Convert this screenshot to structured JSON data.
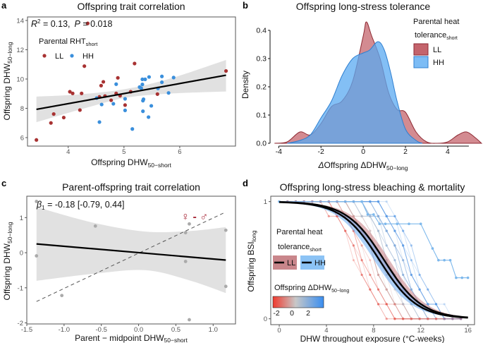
{
  "chart_data": [
    {
      "panel": "a",
      "type": "scatter",
      "title": "Offspring trait correlation",
      "xlabel": "Offspring DHW",
      "xlabel_sub": "50−short",
      "ylabel": "Offspring DHW",
      "ylabel_sub": "50−long",
      "xlim": [
        3.27,
        7.0
      ],
      "ylim": [
        5.42,
        14.24
      ],
      "xticks": [
        4,
        5,
        6
      ],
      "yticks": [
        6,
        8,
        10,
        12,
        14
      ],
      "grid": false,
      "annotation": {
        "r2": "R",
        "r2_sup": "2",
        "r2_val": " = 0.13,",
        "p": "P",
        "p_val": " = 0.018"
      },
      "legend": {
        "title": "Parental RHT",
        "title_sub": "short",
        "placement": "top-left"
      },
      "series": [
        {
          "name": "LL",
          "color": "#a83232",
          "points": [
            [
              3.43,
              5.84
            ],
            [
              3.69,
              7.0
            ],
            [
              3.74,
              7.61
            ],
            [
              3.92,
              7.37
            ],
            [
              4.03,
              9.13
            ],
            [
              4.08,
              9.02
            ],
            [
              4.24,
              9.02
            ],
            [
              4.21,
              7.88
            ],
            [
              4.29,
              10.88
            ],
            [
              4.35,
              13.8
            ],
            [
              4.59,
              9.55
            ],
            [
              4.63,
              9.81
            ],
            [
              4.56,
              8.78
            ],
            [
              4.66,
              8.84
            ],
            [
              4.77,
              8.55
            ],
            [
              4.86,
              9.02
            ],
            [
              4.89,
              10.08
            ],
            [
              4.93,
              8.86
            ],
            [
              5.02,
              8.22
            ],
            [
              5.12,
              9.13
            ],
            [
              5.19,
              11.06
            ],
            [
              5.6,
              8.97
            ],
            [
              6.83,
              10.55
            ]
          ]
        },
        {
          "name": "HH",
          "color": "#3a8fdc",
          "points": [
            [
              4.56,
              7.06
            ],
            [
              4.6,
              8.26
            ],
            [
              4.81,
              8.31
            ],
            [
              4.86,
              9.65
            ],
            [
              4.51,
              8.7
            ],
            [
              5.02,
              8.65
            ],
            [
              5.02,
              7.86
            ],
            [
              5.15,
              6.59
            ],
            [
              5.28,
              9.45
            ],
            [
              5.31,
              9.37
            ],
            [
              5.33,
              9.63
            ],
            [
              5.33,
              9.98
            ],
            [
              5.38,
              9.98
            ],
            [
              5.34,
              8.52
            ],
            [
              5.35,
              8.62
            ],
            [
              5.34,
              7.8
            ],
            [
              5.44,
              7.4
            ],
            [
              5.45,
              10.14
            ],
            [
              5.49,
              8.17
            ],
            [
              5.61,
              9.36
            ],
            [
              5.68,
              9.78
            ],
            [
              5.68,
              10.18
            ],
            [
              5.8,
              9.05
            ],
            [
              5.89,
              10.1
            ]
          ]
        }
      ],
      "fit": {
        "x": [
          3.43,
          6.83
        ],
        "y": [
          7.93,
          10.26
        ]
      },
      "ci": {
        "x": [
          3.43,
          4.2,
          5.0,
          5.8,
          6.83
        ],
        "lower": [
          7.05,
          7.9,
          8.7,
          9.0,
          9.15
        ],
        "upper": [
          8.8,
          8.95,
          9.3,
          10.0,
          11.3
        ]
      }
    },
    {
      "panel": "b",
      "type": "area",
      "title": "Offspring long-stress tolerance",
      "xlabel": "Offspring ΔDHW",
      "xlabel_sub": "50−long",
      "ylabel": "Density",
      "xlim": [
        -4.41,
        5.67
      ],
      "ylim": [
        0,
        0.45
      ],
      "xticks": [
        -4,
        -2,
        0,
        2,
        4
      ],
      "yticks": [
        0.0,
        0.1,
        0.2,
        0.3,
        0.4
      ],
      "ytick_labels": [
        "0.0",
        "0.1",
        "0.2",
        "0.3",
        "0.4"
      ],
      "legend": {
        "title_line1": "Parental heat",
        "title_line2": "tolerance",
        "title_sub": "short",
        "placement": "top-right"
      },
      "series": [
        {
          "name": "LL",
          "fill": "#c4646c",
          "stroke": "#8e2a33",
          "points": [
            [
              -4.2,
              0
            ],
            [
              -3.6,
              0.005
            ],
            [
              -3,
              0.04
            ],
            [
              -2.5,
              0.03
            ],
            [
              -2,
              0.07
            ],
            [
              -1.5,
              0.13
            ],
            [
              -1,
              0.15
            ],
            [
              -0.5,
              0.22
            ],
            [
              0,
              0.38
            ],
            [
              0.15,
              0.43
            ],
            [
              0.4,
              0.38
            ],
            [
              0.8,
              0.3
            ],
            [
              1.2,
              0.18
            ],
            [
              1.6,
              0.12
            ],
            [
              2,
              0.11
            ],
            [
              2.5,
              0.04
            ],
            [
              3,
              0.005
            ],
            [
              3.5,
              0
            ],
            [
              4,
              0.005
            ],
            [
              4.5,
              0.03
            ],
            [
              4.9,
              0.04
            ],
            [
              5.3,
              0.02
            ],
            [
              5.6,
              0
            ]
          ]
        },
        {
          "name": "HH",
          "fill": "#5aaaf2",
          "stroke": "#2f7fd0",
          "points": [
            [
              -3.6,
              0
            ],
            [
              -3,
              0.01
            ],
            [
              -2.5,
              0.03
            ],
            [
              -2,
              0.09
            ],
            [
              -1.5,
              0.15
            ],
            [
              -1,
              0.24
            ],
            [
              -0.5,
              0.3
            ],
            [
              0,
              0.32
            ],
            [
              0.3,
              0.33
            ],
            [
              0.7,
              0.36
            ],
            [
              1.0,
              0.33
            ],
            [
              1.3,
              0.25
            ],
            [
              1.6,
              0.15
            ],
            [
              2,
              0.05
            ],
            [
              2.5,
              0.01
            ],
            [
              2.8,
              0
            ]
          ]
        }
      ]
    },
    {
      "panel": "c",
      "type": "scatter",
      "title": "Parent-offspring trait correlation",
      "xlabel": "Parent − midpoint DHW",
      "xlabel_sub": "50−short",
      "ylabel": "Offspring DHW",
      "ylabel_sub": "50−long",
      "xlim": [
        -1.5,
        1.3
      ],
      "ylim": [
        -2.03,
        1.61
      ],
      "xticks": [
        -1.5,
        -1.0,
        -0.5,
        0.0,
        0.5,
        1.0
      ],
      "xtick_labels": [
        "-1.5",
        "-1.0",
        "-0.5",
        "0.0",
        "0.5",
        "1.0"
      ],
      "yticks": [
        -2,
        -1,
        0,
        1
      ],
      "annotation": {
        "beta": "β",
        "beta_sub": "1",
        "beta_val": " = -0.18 [-0.79, 0.44]",
        "symbol": "♀ - ♂"
      },
      "points_color": "#aaaaaa",
      "points": [
        [
          -1.37,
          1.46
        ],
        [
          -1.37,
          -0.09
        ],
        [
          -0.58,
          0.76
        ],
        [
          -1.03,
          -1.22
        ],
        [
          0.68,
          0.82
        ],
        [
          0.63,
          0.57
        ],
        [
          0.63,
          -0.25
        ],
        [
          0.68,
          -1.91
        ],
        [
          1.17,
          0.64
        ],
        [
          1.17,
          -0.96
        ]
      ],
      "fit": {
        "x": [
          -1.37,
          1.17
        ],
        "y": [
          0.25,
          -0.21
        ]
      },
      "ci": {
        "x": [
          -1.37,
          -0.6,
          0.1,
          0.7,
          1.17
        ],
        "lower": [
          -0.8,
          -0.6,
          -0.5,
          -0.8,
          -1.15
        ],
        "upper": [
          1.3,
          0.85,
          0.6,
          0.62,
          0.73
        ]
      },
      "reference_line": {
        "x": [
          -1.37,
          1.17
        ],
        "y": [
          -1.39,
          1.16
        ],
        "style": "dashed"
      }
    },
    {
      "panel": "d",
      "type": "line",
      "title": "Offspring long-stress bleaching & mortality",
      "xlabel": "DHW throughout exposure (°C-weeks)",
      "ylabel": "Offspring BSI",
      "ylabel_sub": "long",
      "xlim": [
        -0.72,
        16.56
      ],
      "ylim": [
        -0.05,
        1.046
      ],
      "xticks": [
        0,
        4,
        8,
        12,
        16
      ],
      "yticks": [
        0,
        1
      ],
      "legend": {
        "title_line1": "Parental heat",
        "title_line2": "tolerance",
        "title_sub": "short",
        "placement": "middle-left"
      },
      "colorbar": {
        "title": "Offspring ΔDHW",
        "title_sub": "50−long",
        "ticks": [
          -2,
          0,
          2
        ],
        "range": [
          -2.6,
          3.2
        ],
        "low": "#f03a2e",
        "mid": "#c8c8c8",
        "high": "#3a8ef0"
      },
      "series": [
        {
          "name": "LL",
          "band": "#c47a80",
          "line": "#000000",
          "midpoint": 8.9,
          "scale": 1.6
        },
        {
          "name": "HH",
          "band": "#6aaaf0",
          "line": "#000000",
          "midpoint": 8.5,
          "scale": 1.6
        }
      ],
      "highlight_trajectory": {
        "color": "#7db8ec",
        "points": [
          [
            0,
            1
          ],
          [
            7,
            1
          ],
          [
            7.5,
            0.89
          ],
          [
            8,
            0.89
          ],
          [
            8.5,
            0.81
          ],
          [
            9,
            0.81
          ],
          [
            10,
            0.81
          ],
          [
            11,
            0.81
          ],
          [
            12,
            0.81
          ],
          [
            13,
            0.6
          ],
          [
            13.5,
            0.5
          ],
          [
            14,
            0.5
          ],
          [
            14.5,
            0.5
          ],
          [
            15,
            0.35
          ],
          [
            15.5,
            0.35
          ],
          [
            16,
            0.35
          ]
        ]
      }
    }
  ],
  "panel_labels": [
    "a",
    "b",
    "c",
    "d"
  ]
}
